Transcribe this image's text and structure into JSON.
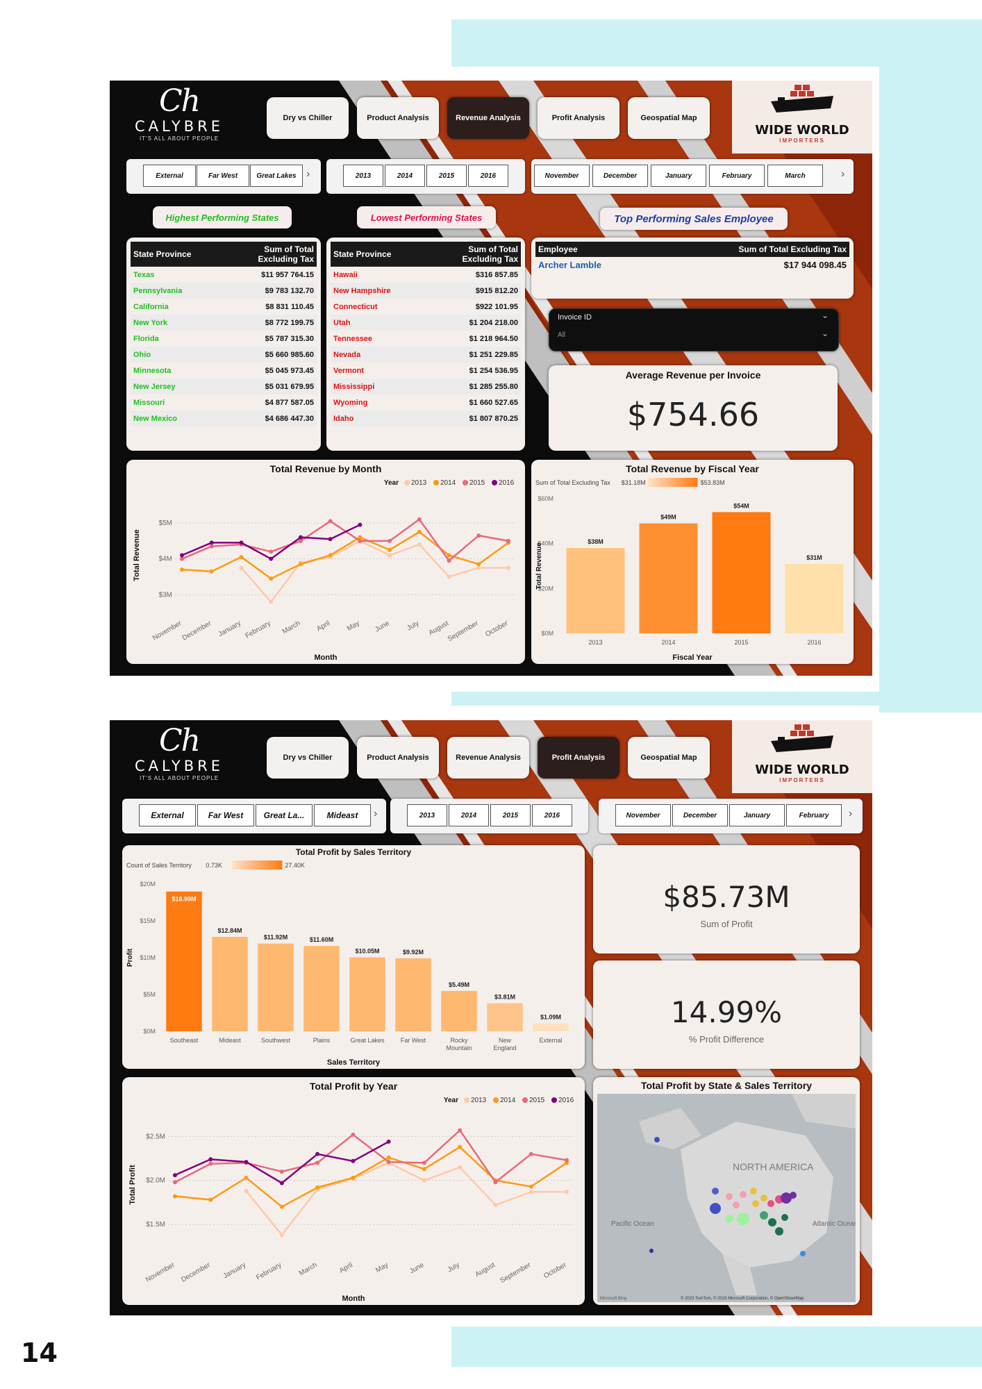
{
  "page_number": "14",
  "colors": {
    "orange": "#ff7a10",
    "orange_light": "#ffb870",
    "year2013": "#ffc8a8",
    "year2014": "#ff9a10",
    "year2015": "#e8697a",
    "year2016": "#800080",
    "green_text": "#1fbf1f",
    "red_text": "#e01010",
    "blue_text": "#1a3fa0"
  },
  "brand": {
    "left_mark": "Ch",
    "left_name": "CALYBRE",
    "left_tagline": "IT'S ALL ABOUT PEOPLE",
    "right_name": "WIDE WORLD",
    "right_sub": "IMPORTERS",
    "ship_icon": "cargo-ship-icon"
  },
  "dash1": {
    "nav": [
      "Dry vs Chiller",
      "Product Analysis",
      "Revenue Analysis",
      "Profit Analysis",
      "Geospatial Map"
    ],
    "active_nav": "Revenue Analysis",
    "slicer_territory": [
      "External",
      "Far West",
      "Great Lakes"
    ],
    "slicer_year": [
      "2013",
      "2014",
      "2015",
      "2016"
    ],
    "slicer_month": [
      "November",
      "December",
      "January",
      "February",
      "March"
    ],
    "pill_high": "Highest Performing States",
    "pill_low": "Lowest Performing States",
    "pill_emp": "Top Performing Sales Employee",
    "table_headers": {
      "state": "State Province",
      "sum": "Sum of Total Excluding Tax"
    },
    "highest": [
      {
        "state": "Texas",
        "value": "$11 957 764.15"
      },
      {
        "state": "Pennsylvania",
        "value": "$9 783 132.70"
      },
      {
        "state": "California",
        "value": "$8 831 110.45"
      },
      {
        "state": "New York",
        "value": "$8 772 199.75"
      },
      {
        "state": "Florida",
        "value": "$5 787 315.30"
      },
      {
        "state": "Ohio",
        "value": "$5 660 985.60"
      },
      {
        "state": "Minnesota",
        "value": "$5 045 973.45"
      },
      {
        "state": "New Jersey",
        "value": "$5 031 679.95"
      },
      {
        "state": "Missouri",
        "value": "$4 877 587.05"
      },
      {
        "state": "New Mexico",
        "value": "$4 686 447.30"
      }
    ],
    "lowest": [
      {
        "state": "Hawaii",
        "value": "$316 857.85"
      },
      {
        "state": "New Hampshire",
        "value": "$915 812.20"
      },
      {
        "state": "Connecticut",
        "value": "$922 101.95"
      },
      {
        "state": "Utah",
        "value": "$1 204 218.00"
      },
      {
        "state": "Tennessee",
        "value": "$1 218 964.50"
      },
      {
        "state": "Nevada",
        "value": "$1 251 229.85"
      },
      {
        "state": "Vermont",
        "value": "$1 254 536.95"
      },
      {
        "state": "Mississippi",
        "value": "$1 285 255.80"
      },
      {
        "state": "Wyoming",
        "value": "$1 660 527.65"
      },
      {
        "state": "Idaho",
        "value": "$1 807 870.25"
      }
    ],
    "employee_table": {
      "h_emp": "Employee",
      "h_sum": "Sum of Total Excluding Tax",
      "name": "Archer Lamble",
      "value": "$17 944 098.45"
    },
    "invoice_filter": {
      "label": "Invoice ID",
      "value": "All"
    },
    "avg_kpi": {
      "label": "Average Revenue per Invoice",
      "value": "$754.66"
    }
  },
  "dash2": {
    "nav": [
      "Dry vs Chiller",
      "Product Analysis",
      "Revenue Analysis",
      "Profit Analysis",
      "Geospatial Map"
    ],
    "active_nav": "Profit Analysis",
    "slicer_territory": [
      "External",
      "Far West",
      "Great La...",
      "Mideast"
    ],
    "slicer_year": [
      "2013",
      "2014",
      "2015",
      "2016"
    ],
    "slicer_month": [
      "November",
      "December",
      "January",
      "February"
    ],
    "kpi_profit": {
      "value": "$85.73M",
      "label": "Sum of Profit"
    },
    "kpi_diff": {
      "value": "14.99%",
      "label": "% Profit Difference"
    },
    "map": {
      "title": "Total Profit by State & Sales Territory",
      "continent": "NORTH AMERICA",
      "pacific": "Pacific Ocean",
      "atlantic": "Atlantic Ocean",
      "attribution": "© 2023 TomTom, © 2023 Microsoft Corporation, © OpenStreetMap",
      "bing": "Microsoft Bing"
    }
  },
  "chart_data": [
    {
      "type": "line",
      "title": "Total Revenue by Month",
      "xlabel": "Month",
      "ylabel": "Total Revenue",
      "legend_title": "Year",
      "categories": [
        "November",
        "December",
        "January",
        "February",
        "March",
        "April",
        "May",
        "June",
        "July",
        "August",
        "September",
        "October"
      ],
      "yticks": [
        "$3M",
        "$4M",
        "$5M"
      ],
      "ylim": [
        2.6,
        5.6
      ],
      "series": [
        {
          "name": "2013",
          "values": [
            null,
            null,
            3.75,
            2.8,
            3.9,
            4.05,
            4.5,
            4.1,
            4.4,
            3.5,
            3.75,
            3.75
          ]
        },
        {
          "name": "2014",
          "values": [
            3.7,
            3.65,
            4.05,
            3.45,
            3.85,
            4.1,
            4.6,
            4.25,
            4.75,
            4.1,
            3.85,
            4.45
          ]
        },
        {
          "name": "2015",
          "values": [
            4.0,
            4.35,
            4.4,
            4.2,
            4.5,
            5.05,
            4.5,
            4.5,
            5.1,
            3.95,
            4.65,
            4.5
          ]
        },
        {
          "name": "2016",
          "values": [
            4.1,
            4.45,
            4.45,
            4.0,
            4.6,
            4.55,
            4.95,
            null,
            null,
            null,
            null,
            null
          ]
        }
      ]
    },
    {
      "type": "bar",
      "title": "Total Revenue by Fiscal Year",
      "xlabel": "Fiscal Year",
      "ylabel": "Total Revenue",
      "color_legend": {
        "label": "Sum of Total Excluding Tax",
        "min": "$31.18M",
        "max": "$53.83M"
      },
      "categories": [
        "2013",
        "2014",
        "2015",
        "2016"
      ],
      "values": [
        38,
        49,
        54,
        31
      ],
      "data_labels": [
        "$38M",
        "$49M",
        "$54M",
        "$31M"
      ],
      "yticks": [
        "$0M",
        "$20M",
        "$40M",
        "$60M"
      ],
      "ylim": [
        0,
        60
      ]
    },
    {
      "type": "bar",
      "title": "Total Profit by Sales Territory",
      "xlabel": "Sales Territory",
      "ylabel": "Profit",
      "color_legend": {
        "label": "Count of Sales Territory",
        "min": "0.73K",
        "max": "27.40K"
      },
      "categories": [
        "Southeast",
        "Mideast",
        "Southwest",
        "Plains",
        "Great Lakes",
        "Far West",
        "Rocky Mountain",
        "New England",
        "External"
      ],
      "values": [
        18.99,
        12.84,
        11.92,
        11.6,
        10.05,
        9.92,
        5.49,
        3.81,
        1.09
      ],
      "data_labels": [
        "$18.99M",
        "$12.84M",
        "$11.92M",
        "$11.60M",
        "$10.05M",
        "$9.92M",
        "$5.49M",
        "$3.81M",
        "$1.09M"
      ],
      "yticks": [
        "$0M",
        "$5M",
        "$10M",
        "$15M",
        "$20M"
      ],
      "ylim": [
        0,
        20
      ]
    },
    {
      "type": "line",
      "title": "Total Profit by Year",
      "xlabel": "Month",
      "ylabel": "Total Profit",
      "legend_title": "Year",
      "categories": [
        "November",
        "December",
        "January",
        "February",
        "March",
        "April",
        "May",
        "June",
        "July",
        "August",
        "September",
        "October"
      ],
      "yticks": [
        "$1.5M",
        "$2.0M",
        "$2.5M"
      ],
      "ylim": [
        1.2,
        2.7
      ],
      "series": [
        {
          "name": "2013",
          "values": [
            null,
            null,
            1.88,
            1.38,
            1.9,
            2.02,
            2.2,
            2.0,
            2.15,
            1.72,
            1.87,
            1.87
          ]
        },
        {
          "name": "2014",
          "values": [
            1.82,
            1.78,
            2.03,
            1.7,
            1.92,
            2.03,
            2.26,
            2.13,
            2.38,
            2.0,
            1.93,
            2.2
          ]
        },
        {
          "name": "2015",
          "values": [
            1.98,
            2.19,
            2.2,
            2.1,
            2.2,
            2.52,
            2.21,
            2.2,
            2.57,
            1.98,
            2.3,
            2.23
          ]
        },
        {
          "name": "2016",
          "values": [
            2.06,
            2.24,
            2.21,
            1.97,
            2.3,
            2.22,
            2.44,
            null,
            null,
            null,
            null,
            null
          ]
        }
      ]
    }
  ]
}
